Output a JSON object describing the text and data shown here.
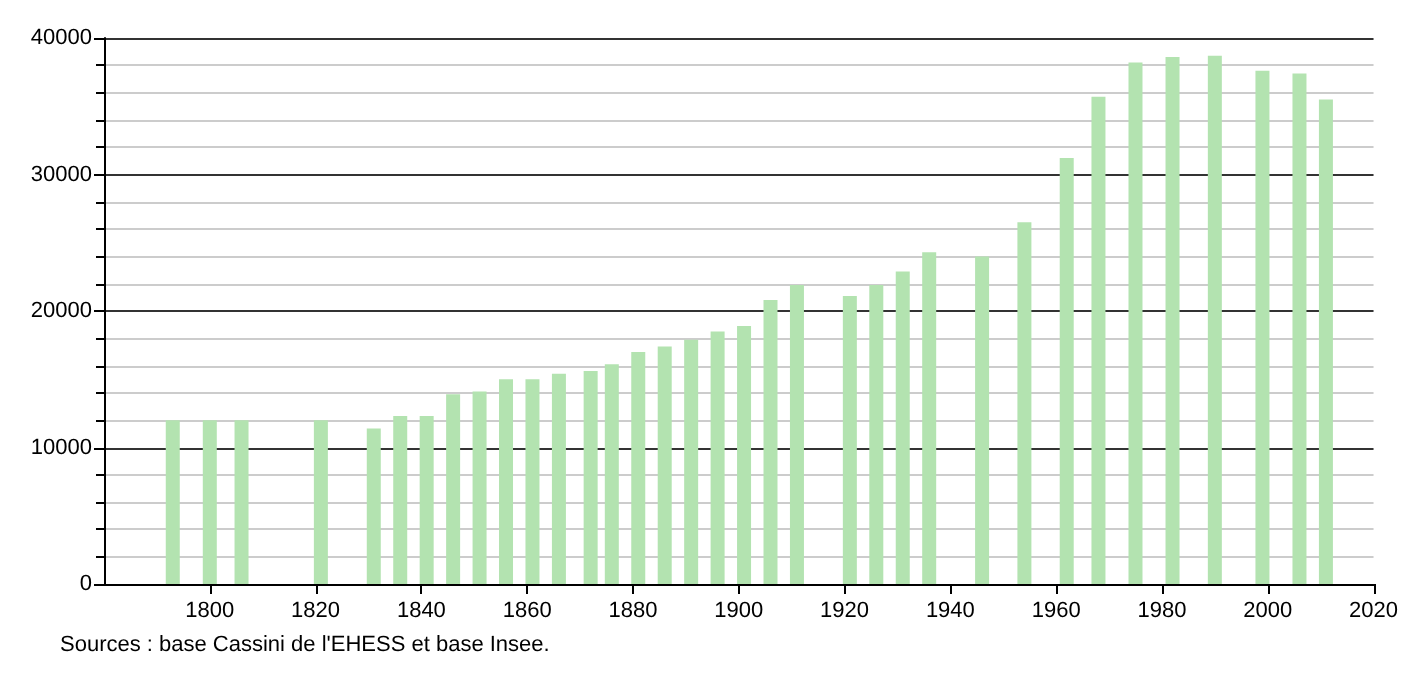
{
  "chart_data": {
    "type": "bar",
    "x": [
      1793,
      1800,
      1806,
      1821,
      1831,
      1836,
      1841,
      1846,
      1851,
      1856,
      1861,
      1866,
      1872,
      1876,
      1881,
      1886,
      1891,
      1896,
      1901,
      1906,
      1911,
      1921,
      1926,
      1931,
      1936,
      1946,
      1954,
      1962,
      1968,
      1975,
      1982,
      1990,
      1999,
      2006,
      2011
    ],
    "values": [
      12000,
      12000,
      12000,
      12000,
      11400,
      12300,
      12300,
      13900,
      14100,
      15000,
      15000,
      15400,
      15600,
      16100,
      17000,
      17400,
      17900,
      18500,
      18900,
      20800,
      21900,
      21100,
      21900,
      22900,
      24300,
      24000,
      26500,
      31200,
      35700,
      38200,
      38600,
      38700,
      37600,
      37400,
      35500
    ],
    "color": "#b3e3b0",
    "xlim": [
      1780,
      2020
    ],
    "xticks": [
      1800,
      1820,
      1840,
      1860,
      1880,
      1900,
      1920,
      1940,
      1960,
      1980,
      2000,
      2020
    ],
    "ylim": [
      0,
      40000
    ],
    "yticks": [
      0,
      10000,
      20000,
      30000,
      40000
    ],
    "grid": "y",
    "annotations": [
      "Sources : base Cassini de l'EHESS et base Insee."
    ]
  }
}
